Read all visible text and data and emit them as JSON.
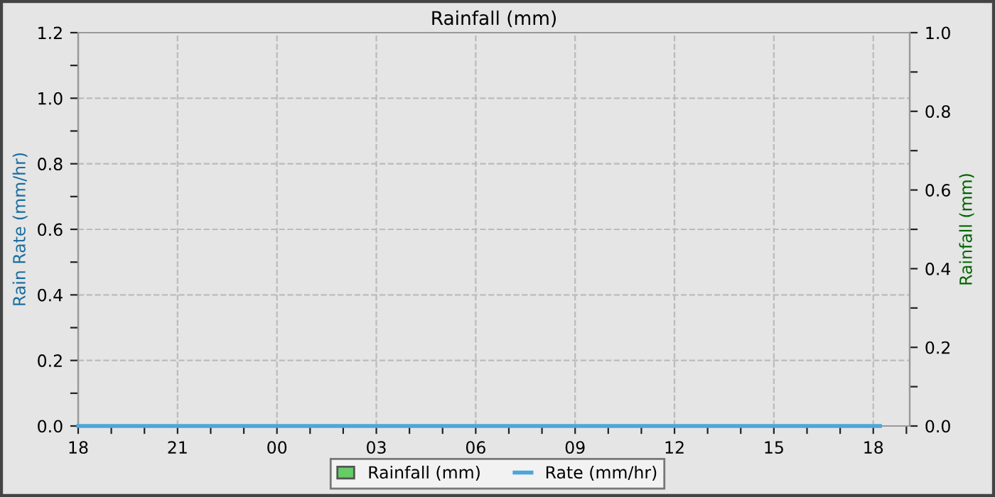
{
  "chart_data": {
    "type": "line",
    "title": "Rainfall (mm)",
    "ylabel": "Rain Rate (mm/hr)",
    "y2label": "Rainfall (mm)",
    "x": [
      18,
      42.2
    ],
    "series": [
      {
        "name": "Rainfall (mm)",
        "type": "bar",
        "color": "#66cc66",
        "values": [
          0,
          0
        ]
      },
      {
        "name": "Rate (mm/hr)",
        "color": "#4da6d9",
        "values": [
          0,
          0
        ]
      }
    ],
    "xlim": [
      18,
      43.1
    ],
    "xticks": [
      {
        "value": 18,
        "label": "18"
      },
      {
        "value": 19,
        "label": null
      },
      {
        "value": 20,
        "label": null
      },
      {
        "value": 21,
        "label": "21"
      },
      {
        "value": 22,
        "label": null
      },
      {
        "value": 23,
        "label": null
      },
      {
        "value": 24,
        "label": "00"
      },
      {
        "value": 25,
        "label": null
      },
      {
        "value": 26,
        "label": null
      },
      {
        "value": 27,
        "label": "03"
      },
      {
        "value": 28,
        "label": null
      },
      {
        "value": 29,
        "label": null
      },
      {
        "value": 30,
        "label": "06"
      },
      {
        "value": 31,
        "label": null
      },
      {
        "value": 32,
        "label": null
      },
      {
        "value": 33,
        "label": "09"
      },
      {
        "value": 34,
        "label": null
      },
      {
        "value": 35,
        "label": null
      },
      {
        "value": 36,
        "label": "12"
      },
      {
        "value": 37,
        "label": null
      },
      {
        "value": 38,
        "label": null
      },
      {
        "value": 39,
        "label": "15"
      },
      {
        "value": 40,
        "label": null
      },
      {
        "value": 41,
        "label": null
      },
      {
        "value": 42,
        "label": "18"
      },
      {
        "value": 43,
        "label": null
      }
    ],
    "ylim": [
      0,
      1.2
    ],
    "yticks": [
      {
        "value": 0,
        "label": "0.0"
      },
      {
        "value": 0.1,
        "label": null
      },
      {
        "value": 0.2,
        "label": "0.2"
      },
      {
        "value": 0.3,
        "label": null
      },
      {
        "value": 0.4,
        "label": "0.4"
      },
      {
        "value": 0.5,
        "label": null
      },
      {
        "value": 0.6,
        "label": "0.6"
      },
      {
        "value": 0.7,
        "label": null
      },
      {
        "value": 0.8,
        "label": "0.8"
      },
      {
        "value": 0.9,
        "label": null
      },
      {
        "value": 1.0,
        "label": "1.0"
      },
      {
        "value": 1.1,
        "label": null
      },
      {
        "value": 1.2,
        "label": "1.2"
      }
    ],
    "y2lim": [
      0,
      1.0
    ],
    "y2ticks": [
      {
        "value": 0,
        "label": "0.0"
      },
      {
        "value": 0.1,
        "label": null
      },
      {
        "value": 0.2,
        "label": "0.2"
      },
      {
        "value": 0.3,
        "label": null
      },
      {
        "value": 0.4,
        "label": "0.4"
      },
      {
        "value": 0.5,
        "label": null
      },
      {
        "value": 0.6,
        "label": "0.6"
      },
      {
        "value": 0.7,
        "label": null
      },
      {
        "value": 0.8,
        "label": "0.8"
      },
      {
        "value": 0.9,
        "label": null
      },
      {
        "value": 1.0,
        "label": "1.0"
      }
    ],
    "grid": true,
    "legend": "bottom",
    "marker": "none",
    "line_style": "solid"
  }
}
